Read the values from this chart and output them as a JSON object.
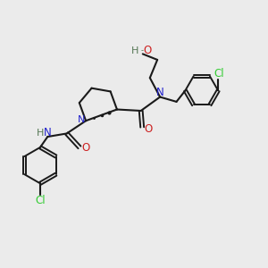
{
  "background_color": "#ebebeb",
  "bond_color": "#1a1a1a",
  "N_color": "#2020cc",
  "O_color": "#cc2020",
  "Cl_color": "#33cc33",
  "H_color": "#557755",
  "figsize": [
    3.0,
    3.0
  ],
  "dpi": 100,
  "xlim": [
    0,
    10
  ],
  "ylim": [
    0,
    10
  ]
}
